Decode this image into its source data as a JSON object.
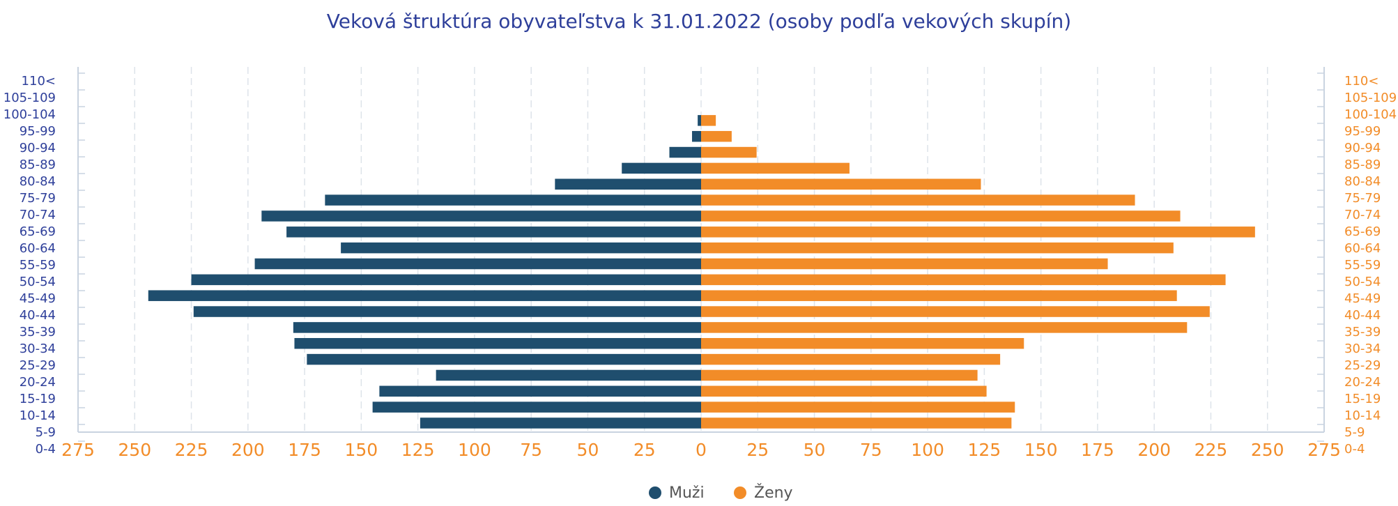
{
  "chart_data": {
    "type": "pyramid",
    "title": "Veková štruktúra  obyvateľstva k 31.01.2022 (osoby podľa vekových skupín)",
    "categories": [
      "0-4",
      "5-9",
      "10-14",
      "15-19",
      "20-24",
      "25-29",
      "30-34",
      "35-39",
      "40-44",
      "45-49",
      "50-54",
      "55-59",
      "60-64",
      "65-69",
      "70-74",
      "75-79",
      "80-84",
      "85-89",
      "90-94",
      "95-99",
      "100-104",
      "105-109",
      "110<"
    ],
    "series": [
      {
        "name": "Muži",
        "color": "#1f4e6e",
        "side": "left",
        "values": [
          124,
          145,
          142,
          117,
          174,
          179.5,
          180,
          224,
          244,
          225,
          197,
          159,
          183,
          194,
          166,
          64.5,
          35,
          14,
          4,
          1.5,
          0,
          0,
          0
        ]
      },
      {
        "name": "Ženy",
        "color": "#f28c28",
        "side": "right",
        "values": [
          137,
          138.5,
          126,
          122,
          132,
          142.5,
          214.5,
          224.5,
          210,
          231.5,
          179.5,
          208.5,
          244.5,
          211.5,
          191.5,
          123.5,
          65.5,
          24.5,
          13.5,
          6.5,
          0,
          0,
          0
        ]
      }
    ],
    "xlim": [
      -275,
      275
    ],
    "xticks": [
      {
        "value": -275,
        "label": "275"
      },
      {
        "value": -250,
        "label": "250"
      },
      {
        "value": -225,
        "label": "225"
      },
      {
        "value": -200,
        "label": "200"
      },
      {
        "value": -175,
        "label": "175"
      },
      {
        "value": -150,
        "label": "150"
      },
      {
        "value": -125,
        "label": "125"
      },
      {
        "value": -100,
        "label": "100"
      },
      {
        "value": -75,
        "label": "75"
      },
      {
        "value": -50,
        "label": "50"
      },
      {
        "value": -25,
        "label": "25"
      },
      0,
      25,
      50,
      75,
      100,
      125,
      150,
      175,
      200,
      225,
      250,
      275
    ],
    "grid": true,
    "legend": "bottom"
  }
}
